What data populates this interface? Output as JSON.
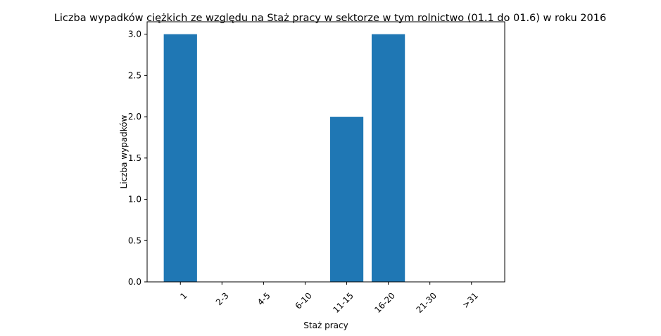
{
  "chart_data": {
    "type": "bar",
    "title": "Liczba wypadków ciężkich ze względu na Staż pracy w sektorze    w tym rolnictwo (01.1 do 01.6) w roku 2016",
    "xlabel": "Staż pracy",
    "ylabel": "Liczba wypadków",
    "categories": [
      "1",
      "2-3",
      "4-5",
      "6-10",
      "11-15",
      "16-20",
      "21-30",
      ">31"
    ],
    "values": [
      3,
      0,
      0,
      0,
      2,
      3,
      0,
      0
    ],
    "ylim": [
      0,
      3.15
    ],
    "yticks": [
      "0.0",
      "0.5",
      "1.0",
      "1.5",
      "2.0",
      "2.5",
      "3.0"
    ],
    "bar_color": "#1f77b4",
    "grid": false,
    "legend": "none"
  }
}
